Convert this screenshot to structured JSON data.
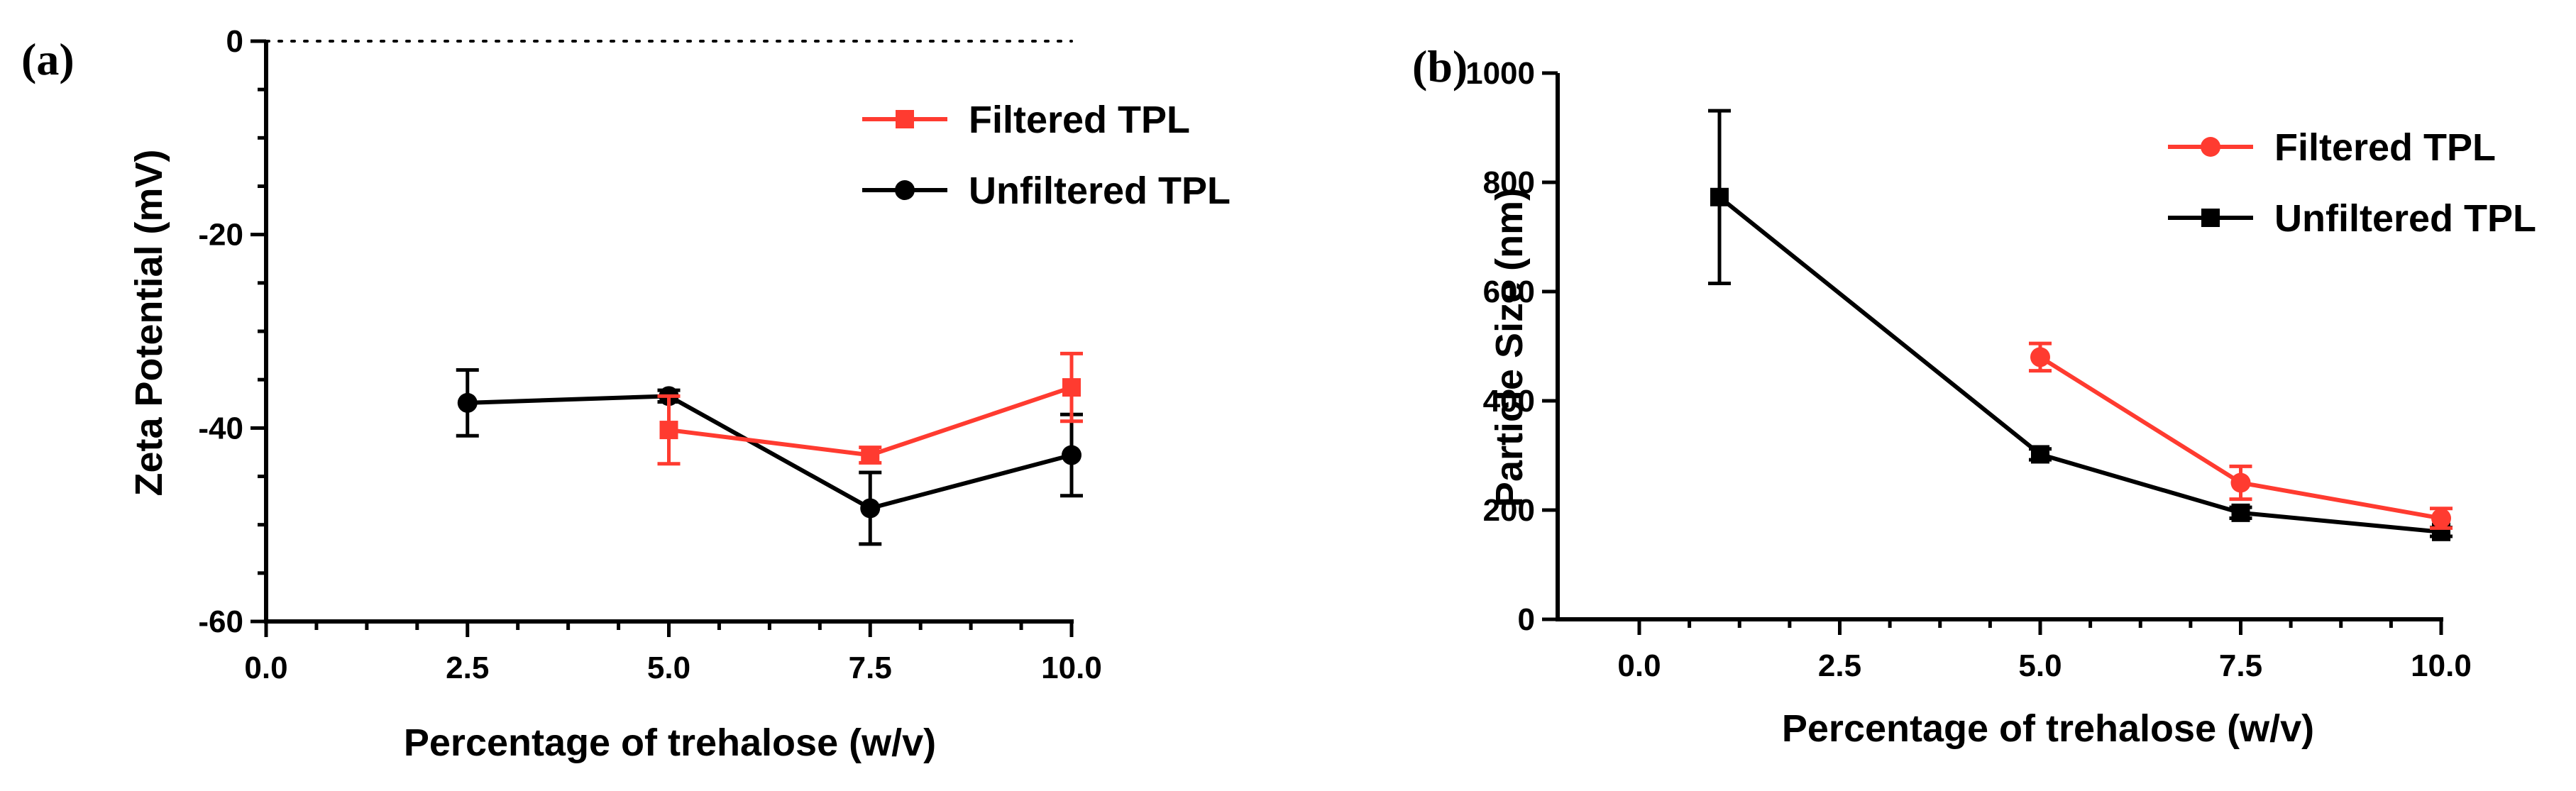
{
  "chart_data": [
    {
      "type": "line",
      "panel_label": "(a)",
      "xlabel": "Percentage of trehalose (w/v)",
      "ylabel": "Zeta Potential (mV)",
      "xlim": [
        0,
        10
      ],
      "ylim": [
        -60,
        0
      ],
      "x_major_ticks": [
        0,
        2.5,
        5,
        7.5,
        10
      ],
      "x_tick_labels": [
        "0.0",
        "2.5",
        "5.0",
        "7.5",
        "10.0"
      ],
      "y_major_ticks": [
        -60,
        -40,
        -20,
        0
      ],
      "y_tick_labels": [
        "-60",
        "-40",
        "-20",
        "0"
      ],
      "reference_line_y": 0,
      "legend_position": "top-right",
      "grid": false,
      "series": [
        {
          "name": "Filtered TPL",
          "color": "#ff3b30",
          "marker": "square",
          "x": [
            5,
            7.5,
            10
          ],
          "y": [
            -40.2,
            -42.8,
            -35.8
          ],
          "error": [
            3.5,
            0.8,
            3.5
          ]
        },
        {
          "name": "Unfiltered TPL",
          "color": "#000000",
          "marker": "circle",
          "x": [
            2.5,
            5,
            7.5,
            10
          ],
          "y": [
            -37.4,
            -36.7,
            -48.3,
            -42.8
          ],
          "error": [
            3.4,
            0.6,
            3.7,
            4.2
          ]
        }
      ]
    },
    {
      "type": "line",
      "panel_label": "(b)",
      "xlabel": "Percentage of trehalose (w/v)",
      "ylabel": "Particle Size (nm)",
      "xlim": [
        0,
        10
      ],
      "ylim": [
        0,
        1000
      ],
      "x_major_ticks": [
        0,
        2.5,
        5,
        7.5,
        10
      ],
      "x_tick_labels": [
        "0.0",
        "2.5",
        "5.0",
        "7.5",
        "10.0"
      ],
      "y_major_ticks": [
        0,
        200,
        400,
        600,
        800,
        1000
      ],
      "y_tick_labels": [
        "0",
        "200",
        "400",
        "600",
        "800",
        "1000"
      ],
      "legend_position": "top-right",
      "grid": false,
      "series": [
        {
          "name": "Filtered TPL",
          "color": "#ff3b30",
          "marker": "circle",
          "x": [
            5,
            7.5,
            10
          ],
          "y": [
            480,
            250,
            185
          ],
          "error": [
            25,
            30,
            18
          ]
        },
        {
          "name": "Unfiltered TPL",
          "color": "#000000",
          "marker": "square",
          "x": [
            1,
            5,
            7.5,
            10
          ],
          "y": [
            773,
            302,
            195,
            160
          ],
          "error": [
            158,
            10,
            10,
            8
          ]
        }
      ]
    }
  ]
}
